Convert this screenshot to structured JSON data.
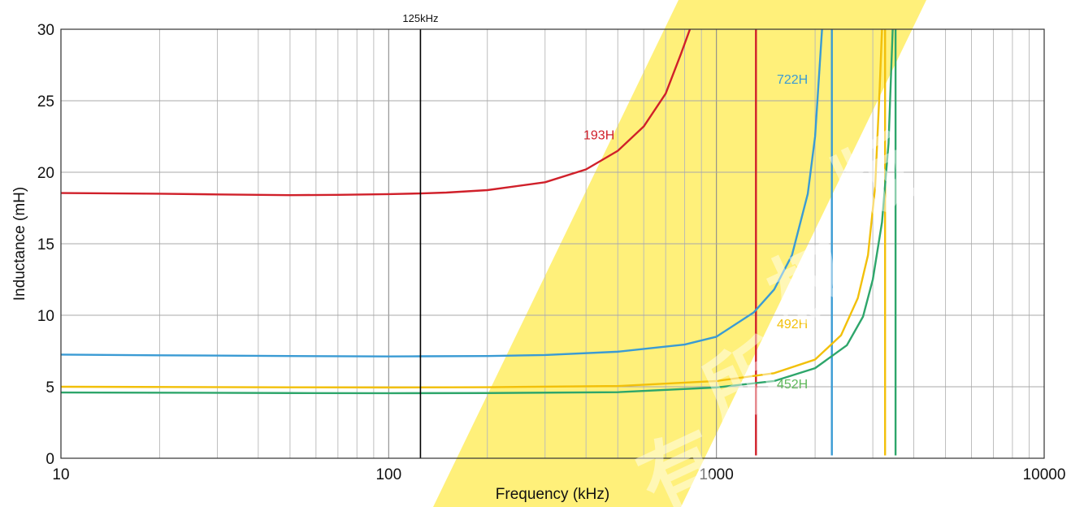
{
  "chart_data": {
    "type": "line",
    "xlabel": "Frequency (kHz)",
    "ylabel": "Inductance (mH)",
    "xscale": "log",
    "xlim": [
      10,
      10000
    ],
    "ylim": [
      0,
      30
    ],
    "grid": true,
    "x_tick_labels": [
      "10",
      "100",
      "1000",
      "10000"
    ],
    "y_tick_labels": [
      "0",
      "5",
      "10",
      "15",
      "20",
      "25",
      "30"
    ],
    "marker": {
      "label": "125kHz",
      "x": 125,
      "color": "#000000"
    },
    "series": [
      {
        "name": "193H",
        "color": "#d0202a",
        "points": [
          [
            10,
            18.55
          ],
          [
            20,
            18.5
          ],
          [
            30,
            18.45
          ],
          [
            50,
            18.4
          ],
          [
            70,
            18.42
          ],
          [
            100,
            18.47
          ],
          [
            125,
            18.52
          ],
          [
            150,
            18.58
          ],
          [
            200,
            18.75
          ],
          [
            300,
            19.3
          ],
          [
            400,
            20.2
          ],
          [
            500,
            21.5
          ],
          [
            600,
            23.2
          ],
          [
            700,
            25.5
          ],
          [
            780,
            28.3
          ],
          [
            830,
            30
          ]
        ],
        "resonance_x": 1320
      },
      {
        "name": "722H",
        "color": "#3a9bd4",
        "points": [
          [
            10,
            7.25
          ],
          [
            20,
            7.2
          ],
          [
            50,
            7.15
          ],
          [
            100,
            7.12
          ],
          [
            125,
            7.13
          ],
          [
            200,
            7.15
          ],
          [
            300,
            7.22
          ],
          [
            500,
            7.45
          ],
          [
            800,
            7.95
          ],
          [
            1000,
            8.5
          ],
          [
            1300,
            10.2
          ],
          [
            1500,
            11.8
          ],
          [
            1700,
            14.2
          ],
          [
            1900,
            18.5
          ],
          [
            2000,
            22.5
          ],
          [
            2100,
            30
          ]
        ],
        "resonance_x": 2250
      },
      {
        "name": "492H",
        "color": "#f2c00a",
        "points": [
          [
            10,
            5.0
          ],
          [
            50,
            4.96
          ],
          [
            100,
            4.95
          ],
          [
            200,
            4.97
          ],
          [
            500,
            5.05
          ],
          [
            1000,
            5.4
          ],
          [
            1500,
            5.95
          ],
          [
            2000,
            6.9
          ],
          [
            2400,
            8.6
          ],
          [
            2700,
            11.2
          ],
          [
            2900,
            14.2
          ],
          [
            3050,
            19
          ],
          [
            3150,
            26
          ],
          [
            3200,
            30
          ]
        ],
        "resonance_x": 3270
      },
      {
        "name": "452H",
        "color": "#2ea66b",
        "points": [
          [
            10,
            4.6
          ],
          [
            50,
            4.56
          ],
          [
            100,
            4.55
          ],
          [
            200,
            4.56
          ],
          [
            500,
            4.62
          ],
          [
            1000,
            4.95
          ],
          [
            1500,
            5.4
          ],
          [
            2000,
            6.3
          ],
          [
            2500,
            7.9
          ],
          [
            2800,
            9.9
          ],
          [
            3000,
            12.5
          ],
          [
            3200,
            16.5
          ],
          [
            3350,
            22
          ],
          [
            3450,
            30
          ]
        ],
        "resonance_x": 3520
      }
    ],
    "annotations": [
      {
        "text": "193H",
        "x": 2.19,
        "y": 22.3,
        "color": "#d0202a"
      },
      {
        "text": "722H",
        "x": 1600,
        "y": 26.2,
        "color": "#3a9bd4"
      },
      {
        "text": "492H",
        "x": 1600,
        "y": 9.1,
        "color": "#f2c00a"
      },
      {
        "text": "452H",
        "x": 1600,
        "y": 4.9,
        "color": "#5fb85a"
      }
    ]
  },
  "watermark": {
    "text": "版权所有",
    "band_color": "#fff07a"
  }
}
